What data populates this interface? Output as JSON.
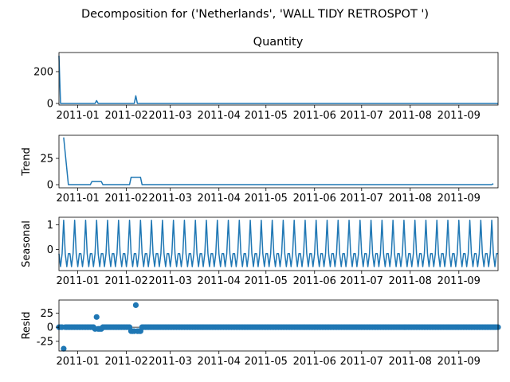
{
  "figure": {
    "suptitle": "Decomposition for ('Netherlands', 'WALL TIDY RETROSPOT ')"
  },
  "colors": {
    "series": "#1f77b4",
    "axes": "#000000",
    "background": "#ffffff"
  },
  "x_axis": {
    "start": "2010-12-20",
    "end": "2011-09-26",
    "ticks": [
      {
        "date": "2011-01-01",
        "label": "2011-01"
      },
      {
        "date": "2011-02-01",
        "label": "2011-02"
      },
      {
        "date": "2011-03-01",
        "label": "2011-03"
      },
      {
        "date": "2011-04-01",
        "label": "2011-04"
      },
      {
        "date": "2011-05-01",
        "label": "2011-05"
      },
      {
        "date": "2011-06-01",
        "label": "2011-06"
      },
      {
        "date": "2011-07-01",
        "label": "2011-07"
      },
      {
        "date": "2011-08-01",
        "label": "2011-08"
      },
      {
        "date": "2011-09-01",
        "label": "2011-09"
      }
    ]
  },
  "chart_data": [
    {
      "type": "line",
      "panel": "observed",
      "title": "Quantity",
      "ylabel": "",
      "ylim": [
        -10,
        320
      ],
      "yticks": [
        0,
        200
      ],
      "grid": false,
      "x_range": [
        "2010-12-20",
        "2011-09-26"
      ],
      "daily_value": 0,
      "points": [
        {
          "x": "2010-12-20",
          "y": 300
        },
        {
          "x": "2010-12-21",
          "y": 0
        },
        {
          "x": "2011-01-12",
          "y": 0
        },
        {
          "x": "2011-01-13",
          "y": 18
        },
        {
          "x": "2011-01-14",
          "y": 0
        },
        {
          "x": "2011-02-06",
          "y": 0
        },
        {
          "x": "2011-02-07",
          "y": 48
        },
        {
          "x": "2011-02-08",
          "y": 0
        },
        {
          "x": "2011-09-26",
          "y": 0
        }
      ]
    },
    {
      "type": "line",
      "panel": "trend",
      "title": "",
      "ylabel": "Trend",
      "ylim": [
        -3,
        47
      ],
      "yticks": [
        0,
        25
      ],
      "grid": false,
      "x_range": [
        "2010-12-23",
        "2011-09-23"
      ],
      "daily_value": 0,
      "points": [
        {
          "x": "2010-12-23",
          "y": 45
        },
        {
          "x": "2010-12-26",
          "y": 0
        },
        {
          "x": "2011-01-09",
          "y": 0
        },
        {
          "x": "2011-01-10",
          "y": 3
        },
        {
          "x": "2011-01-16",
          "y": 3
        },
        {
          "x": "2011-01-17",
          "y": 0
        },
        {
          "x": "2011-02-03",
          "y": 0
        },
        {
          "x": "2011-02-04",
          "y": 7
        },
        {
          "x": "2011-02-10",
          "y": 7
        },
        {
          "x": "2011-02-11",
          "y": 0
        },
        {
          "x": "2011-09-22",
          "y": 0
        },
        {
          "x": "2011-09-23",
          "y": 1
        }
      ]
    },
    {
      "type": "line",
      "panel": "seasonal",
      "title": "",
      "ylabel": "Seasonal",
      "ylim": [
        -0.85,
        1.3
      ],
      "yticks": [
        0,
        1
      ],
      "grid": false,
      "x_range": [
        "2010-12-20",
        "2011-09-26"
      ],
      "period_days": 7,
      "pattern": [
        -0.17,
        -0.69,
        -0.17,
        1.18,
        -0.17,
        -0.69,
        -0.17
      ]
    },
    {
      "type": "scatter",
      "panel": "resid",
      "title": "",
      "ylabel": "Resid",
      "ylim": [
        -42,
        48
      ],
      "yticks": [
        -25,
        0,
        25
      ],
      "grid": false,
      "x_range": [
        "2010-12-20",
        "2011-09-26"
      ],
      "baseline": 0,
      "marker_every_days": 1,
      "points": [
        {
          "x": "2010-12-23",
          "y": -38
        },
        {
          "x": "2011-01-12",
          "y": -3
        },
        {
          "x": "2011-01-13",
          "y": 18
        },
        {
          "x": "2011-01-14",
          "y": -3
        },
        {
          "x": "2011-01-15",
          "y": -3
        },
        {
          "x": "2011-01-16",
          "y": -3
        },
        {
          "x": "2011-02-04",
          "y": -7
        },
        {
          "x": "2011-02-05",
          "y": -7
        },
        {
          "x": "2011-02-06",
          "y": -7
        },
        {
          "x": "2011-02-07",
          "y": 39
        },
        {
          "x": "2011-02-08",
          "y": -7
        },
        {
          "x": "2011-02-09",
          "y": -7
        },
        {
          "x": "2011-02-10",
          "y": -7
        }
      ]
    }
  ]
}
